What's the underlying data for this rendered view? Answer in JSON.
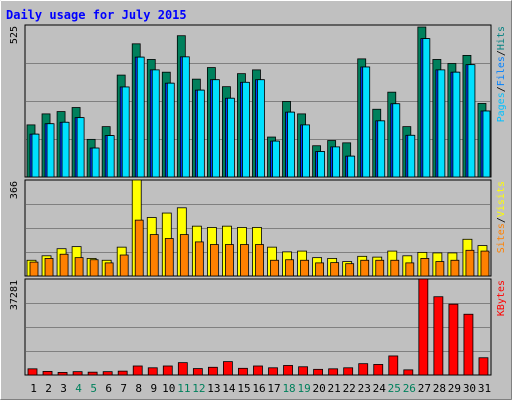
{
  "chart_data": {
    "type": "bar",
    "title": "Daily usage for July 2015",
    "days": [
      "1",
      "2",
      "3",
      "4",
      "5",
      "6",
      "7",
      "8",
      "9",
      "10",
      "11",
      "12",
      "13",
      "14",
      "15",
      "16",
      "17",
      "18",
      "19",
      "20",
      "21",
      "22",
      "23",
      "24",
      "25",
      "26",
      "27",
      "28",
      "29",
      "30",
      "31"
    ],
    "weekend_days": [
      "4",
      "5",
      "11",
      "12",
      "18",
      "19",
      "25",
      "26"
    ],
    "panels": [
      {
        "id": "hits-files-pages",
        "ymax_label": "525",
        "ymax": 525,
        "axis_labels": [
          {
            "text": "Pages",
            "color": "#00c0ff"
          },
          {
            "text": "/",
            "color": "#000000"
          },
          {
            "text": "Files",
            "color": "#0080ff"
          },
          {
            "text": "/",
            "color": "#000000"
          },
          {
            "text": "Hits",
            "color": "#008080"
          }
        ],
        "series": [
          {
            "name": "Hits",
            "color": "#00805c",
            "values": [
              180,
              218,
              226,
              240,
              130,
              174,
              352,
              460,
              406,
              362,
              488,
              338,
              378,
              312,
              357,
              370,
              138,
              261,
              218,
              108,
              126,
              118,
              408,
              234,
              293,
              174,
              518,
              406,
              392,
              420,
              254
            ]
          },
          {
            "name": "Files",
            "color": "#0040ff",
            "values": [
              148,
              184,
              189,
              205,
              100,
              143,
              311,
              414,
              370,
              324,
              415,
              300,
              336,
              272,
              327,
              336,
              124,
              224,
              180,
              88,
              104,
              72,
              380,
              194,
              253,
              144,
              478,
              370,
              362,
              388,
              228
            ]
          },
          {
            "name": "Pages",
            "color": "#00e0ff",
            "values": [
              148,
              184,
              189,
              205,
              100,
              143,
              311,
              414,
              370,
              324,
              415,
              300,
              336,
              272,
              327,
              336,
              124,
              224,
              180,
              88,
              104,
              72,
              380,
              194,
              253,
              144,
              478,
              370,
              362,
              388,
              228
            ]
          }
        ]
      },
      {
        "id": "visits-sites",
        "ymax_label": "366",
        "ymax": 366,
        "axis_labels": [
          {
            "text": "Sites",
            "color": "#ff8000"
          },
          {
            "text": "/",
            "color": "#000000"
          },
          {
            "text": "Visits",
            "color": "#ffff00"
          }
        ],
        "series": [
          {
            "name": "Visits",
            "color": "#ffff00",
            "values": [
              60,
              77,
              104,
              112,
              67,
              60,
              110,
              366,
              223,
              240,
              260,
              190,
              185,
              190,
              185,
              185,
              110,
              92,
              95,
              70,
              67,
              55,
              75,
              72,
              95,
              77,
              90,
              88,
              88,
              140,
              116
            ]
          },
          {
            "name": "Sites",
            "color": "#ff8000",
            "values": [
              53,
              67,
              83,
              70,
              62,
              50,
              80,
              213,
              158,
              143,
              158,
              130,
              120,
              120,
              120,
              120,
              60,
              62,
              60,
              50,
              51,
              47,
              60,
              60,
              60,
              50,
              67,
              55,
              60,
              98,
              95
            ]
          }
        ]
      },
      {
        "id": "kbytes",
        "ymax_label": "37281",
        "ymax": 37281,
        "axis_labels": [
          {
            "text": "KBytes",
            "color": "#ff0000"
          }
        ],
        "series": [
          {
            "name": "KBytes",
            "color": "#ff0000",
            "values": [
              2400,
              1400,
              1000,
              1300,
              1100,
              1300,
              1500,
              3500,
              2800,
              3500,
              4800,
              2500,
              3000,
              5200,
              2600,
              3500,
              2800,
              3700,
              3200,
              2200,
              2400,
              2800,
              4400,
              4100,
              7400,
              2000,
              37281,
              30400,
              27500,
              23600,
              6700
            ]
          }
        ]
      }
    ]
  }
}
